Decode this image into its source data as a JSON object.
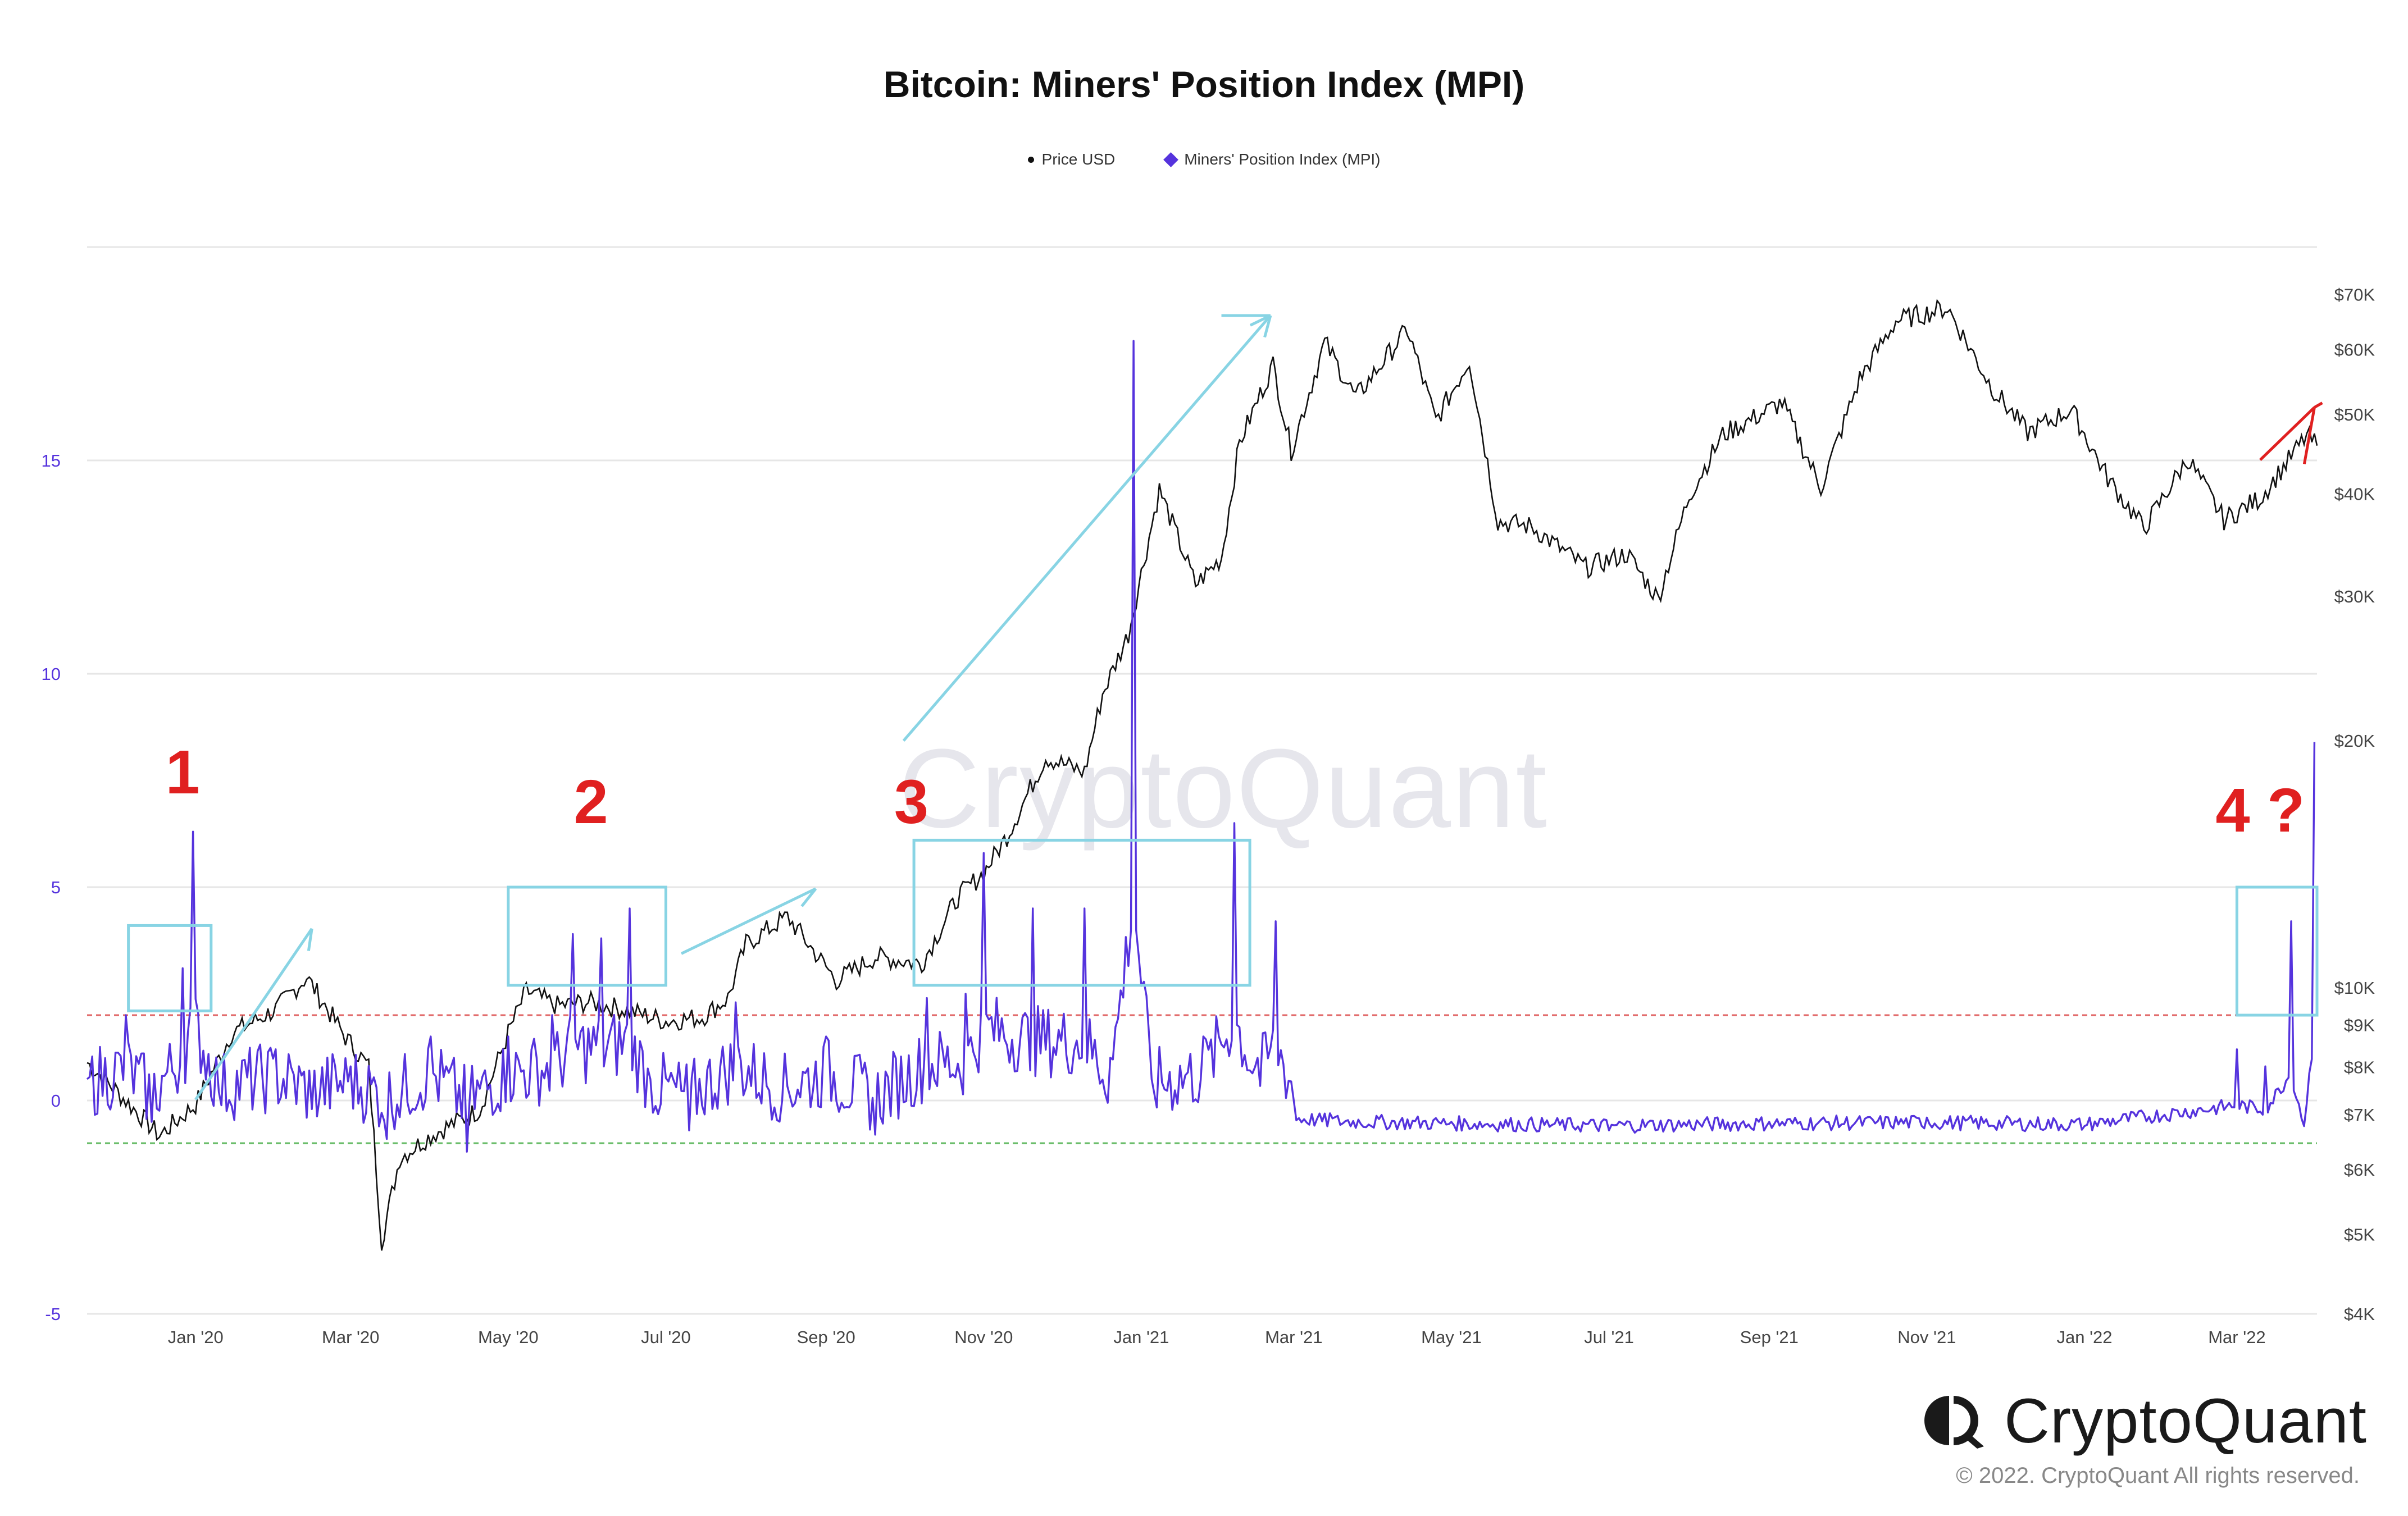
{
  "chart_data": {
    "type": "line",
    "title": "Bitcoin: Miners' Position Index (MPI)",
    "legend": [
      {
        "name": "Price USD",
        "color": "#111111",
        "marker": "dot"
      },
      {
        "name": "Miners' Position Index (MPI)",
        "color": "#5533dd",
        "marker": "diamond"
      }
    ],
    "legend_position": "top-center",
    "grid": true,
    "x_ticks": [
      "Jan '20",
      "Mar '20",
      "May '20",
      "Jul '20",
      "Sep '20",
      "Nov '20",
      "Jan '21",
      "Mar '21",
      "May '21",
      "Jul '21",
      "Sep '21",
      "Nov '21",
      "Jan '22",
      "Mar '22"
    ],
    "x_range": [
      "2019-11-20",
      "2022-04-01"
    ],
    "y_left": {
      "ticks": [
        "15",
        "10",
        "5",
        "0",
        "-5"
      ],
      "range": [
        -5,
        20
      ],
      "color": "#5533dd"
    },
    "y_right": {
      "scale": "log",
      "ticks": [
        "$70K",
        "$60K",
        "$50K",
        "$40K",
        "$30K",
        "$20K",
        "$10K",
        "$9K",
        "$8K",
        "$7K",
        "$6K",
        "$5K",
        "$4K"
      ],
      "range": [
        4000,
        80000
      ]
    },
    "threshold_lines": [
      {
        "value": 2,
        "color": "#e06666"
      },
      {
        "value": -1,
        "color": "#66bb66"
      }
    ],
    "series": [
      {
        "name": "Price USD",
        "axis": "right",
        "points": [
          [
            "2019-11-20",
            8100
          ],
          [
            "2019-12-01",
            7500
          ],
          [
            "2019-12-18",
            6600
          ],
          [
            "2020-01-01",
            7200
          ],
          [
            "2020-01-15",
            8800
          ],
          [
            "2020-02-01",
            9400
          ],
          [
            "2020-02-13",
            10300
          ],
          [
            "2020-02-28",
            8700
          ],
          [
            "2020-03-08",
            8000
          ],
          [
            "2020-03-13",
            4900
          ],
          [
            "2020-03-20",
            6200
          ],
          [
            "2020-04-01",
            6600
          ],
          [
            "2020-04-20",
            7100
          ],
          [
            "2020-05-01",
            8800
          ],
          [
            "2020-05-08",
            9900
          ],
          [
            "2020-05-20",
            9500
          ],
          [
            "2020-06-01",
            9600
          ],
          [
            "2020-06-15",
            9400
          ],
          [
            "2020-07-01",
            9100
          ],
          [
            "2020-07-15",
            9200
          ],
          [
            "2020-07-25",
            9700
          ],
          [
            "2020-08-01",
            11300
          ],
          [
            "2020-08-17",
            12200
          ],
          [
            "2020-09-05",
            10200
          ],
          [
            "2020-09-20",
            10900
          ],
          [
            "2020-10-08",
            10700
          ],
          [
            "2020-10-22",
            12900
          ],
          [
            "2020-11-01",
            13800
          ],
          [
            "2020-11-10",
            15300
          ],
          [
            "2020-11-25",
            19100
          ],
          [
            "2020-12-10",
            18300
          ],
          [
            "2020-12-17",
            22800
          ],
          [
            "2020-12-27",
            27000
          ],
          [
            "2021-01-08",
            40500
          ],
          [
            "2021-01-22",
            31000
          ],
          [
            "2021-02-01",
            33400
          ],
          [
            "2021-02-08",
            46200
          ],
          [
            "2021-02-21",
            57500
          ],
          [
            "2021-02-28",
            45200
          ],
          [
            "2021-03-13",
            61200
          ],
          [
            "2021-03-25",
            52400
          ],
          [
            "2021-04-14",
            63500
          ],
          [
            "2021-04-25",
            49100
          ],
          [
            "2021-05-08",
            58300
          ],
          [
            "2021-05-19",
            37000
          ],
          [
            "2021-06-01",
            36500
          ],
          [
            "2021-06-22",
            32500
          ],
          [
            "2021-07-08",
            33800
          ],
          [
            "2021-07-20",
            29800
          ],
          [
            "2021-08-01",
            39800
          ],
          [
            "2021-08-14",
            47200
          ],
          [
            "2021-09-06",
            51700
          ],
          [
            "2021-09-21",
            40700
          ],
          [
            "2021-10-06",
            55300
          ],
          [
            "2021-10-20",
            65000
          ],
          [
            "2021-11-09",
            67500
          ],
          [
            "2021-11-26",
            54000
          ],
          [
            "2021-12-10",
            47500
          ],
          [
            "2021-12-27",
            50700
          ],
          [
            "2022-01-10",
            41800
          ],
          [
            "2022-01-24",
            36300
          ],
          [
            "2022-02-10",
            44200
          ],
          [
            "2022-02-24",
            37200
          ],
          [
            "2022-03-10",
            39500
          ],
          [
            "2022-03-28",
            47100
          ],
          [
            "2022-04-01",
            45800
          ]
        ]
      },
      {
        "name": "Miners' Position Index (MPI)",
        "axis": "left",
        "points": [
          [
            "2019-11-20",
            0.5
          ],
          [
            "2019-12-05",
            2.0
          ],
          [
            "2019-12-15",
            -0.5
          ],
          [
            "2019-12-27",
            3.1
          ],
          [
            "2019-12-31",
            6.3
          ],
          [
            "2020-01-10",
            0.2
          ],
          [
            "2020-02-01",
            1.2
          ],
          [
            "2020-02-15",
            -0.2
          ],
          [
            "2020-03-01",
            0.8
          ],
          [
            "2020-03-15",
            -0.9
          ],
          [
            "2020-04-01",
            1.5
          ],
          [
            "2020-04-15",
            -1.2
          ],
          [
            "2020-05-01",
            1.5
          ],
          [
            "2020-05-18",
            2.0
          ],
          [
            "2020-05-26",
            3.9
          ],
          [
            "2020-06-06",
            3.8
          ],
          [
            "2020-06-17",
            4.5
          ],
          [
            "2020-06-25",
            0.5
          ],
          [
            "2020-07-10",
            -0.7
          ],
          [
            "2020-07-28",
            2.3
          ],
          [
            "2020-08-15",
            0.0
          ],
          [
            "2020-09-01",
            1.5
          ],
          [
            "2020-09-20",
            -0.8
          ],
          [
            "2020-10-10",
            2.4
          ],
          [
            "2020-10-25",
            2.5
          ],
          [
            "2020-11-01",
            5.8
          ],
          [
            "2020-11-20",
            4.5
          ],
          [
            "2020-12-10",
            4.5
          ],
          [
            "2020-12-20",
            1.0
          ],
          [
            "2020-12-29",
            17.8
          ],
          [
            "2021-01-05",
            0.5
          ],
          [
            "2021-01-25",
            1.5
          ],
          [
            "2021-02-06",
            6.5
          ],
          [
            "2021-02-15",
            1.0
          ],
          [
            "2021-02-22",
            4.2
          ],
          [
            "2021-03-01",
            0.0
          ],
          [
            "2021-03-15",
            -0.3
          ],
          [
            "2021-05-01",
            -0.5
          ],
          [
            "2021-07-01",
            -0.7
          ],
          [
            "2021-09-01",
            -0.5
          ],
          [
            "2021-11-01",
            -0.4
          ],
          [
            "2022-01-01",
            -0.6
          ],
          [
            "2022-03-01",
            1.2
          ],
          [
            "2022-03-12",
            0.8
          ],
          [
            "2022-03-22",
            4.2
          ],
          [
            "2022-03-27",
            -0.6
          ],
          [
            "2022-03-31",
            8.4
          ]
        ]
      }
    ],
    "annotations": [
      "1",
      "2",
      "3",
      "4 ?"
    ],
    "watermark": "CryptoQuant"
  },
  "brand": {
    "name": "CryptoQuant",
    "copyright": "© 2022. CryptoQuant All rights reserved."
  },
  "colors": {
    "price": "#111111",
    "mpi": "#5533dd",
    "highlight": "#88d4e4",
    "annotation": "#e02020",
    "grid": "#e6e6e6"
  }
}
